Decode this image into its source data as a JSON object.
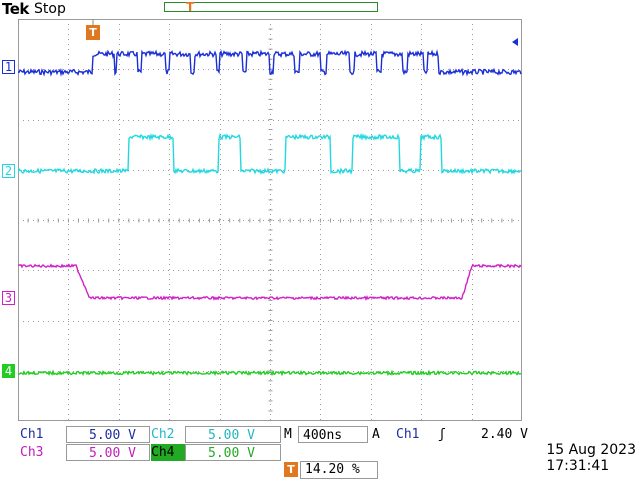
{
  "header": {
    "brand": "Tek",
    "status": "Stop"
  },
  "channels": [
    {
      "marker": "1",
      "color": "#1a2fd6"
    },
    {
      "marker": "2",
      "color": "#22d8e0"
    },
    {
      "marker": "3",
      "color": "#d020c8"
    },
    {
      "marker": "4",
      "color": "#22cc22"
    }
  ],
  "trigger_marker": "T",
  "readouts": {
    "ch1_label": "Ch1",
    "ch1_value": "5.00 V",
    "ch2_label": "Ch2",
    "ch2_value": "5.00 V",
    "ch3_label": "Ch3",
    "ch3_value": "5.00 V",
    "ch4_label": "Ch4",
    "ch4_value": "5.00 V",
    "timebase_label": "M",
    "timebase_value": "400ns",
    "trigger_mode": "A",
    "trigger_source": "Ch1",
    "trigger_slope": "ʃ",
    "trigger_level": "2.40 V",
    "trigger_position": "14.20 %"
  },
  "datetime": {
    "date": "15 Aug 2023",
    "time": "17:31:41"
  },
  "colors": {
    "grid": "#9a9a9a",
    "trigger": "#e07820",
    "background": "#ffffff"
  }
}
